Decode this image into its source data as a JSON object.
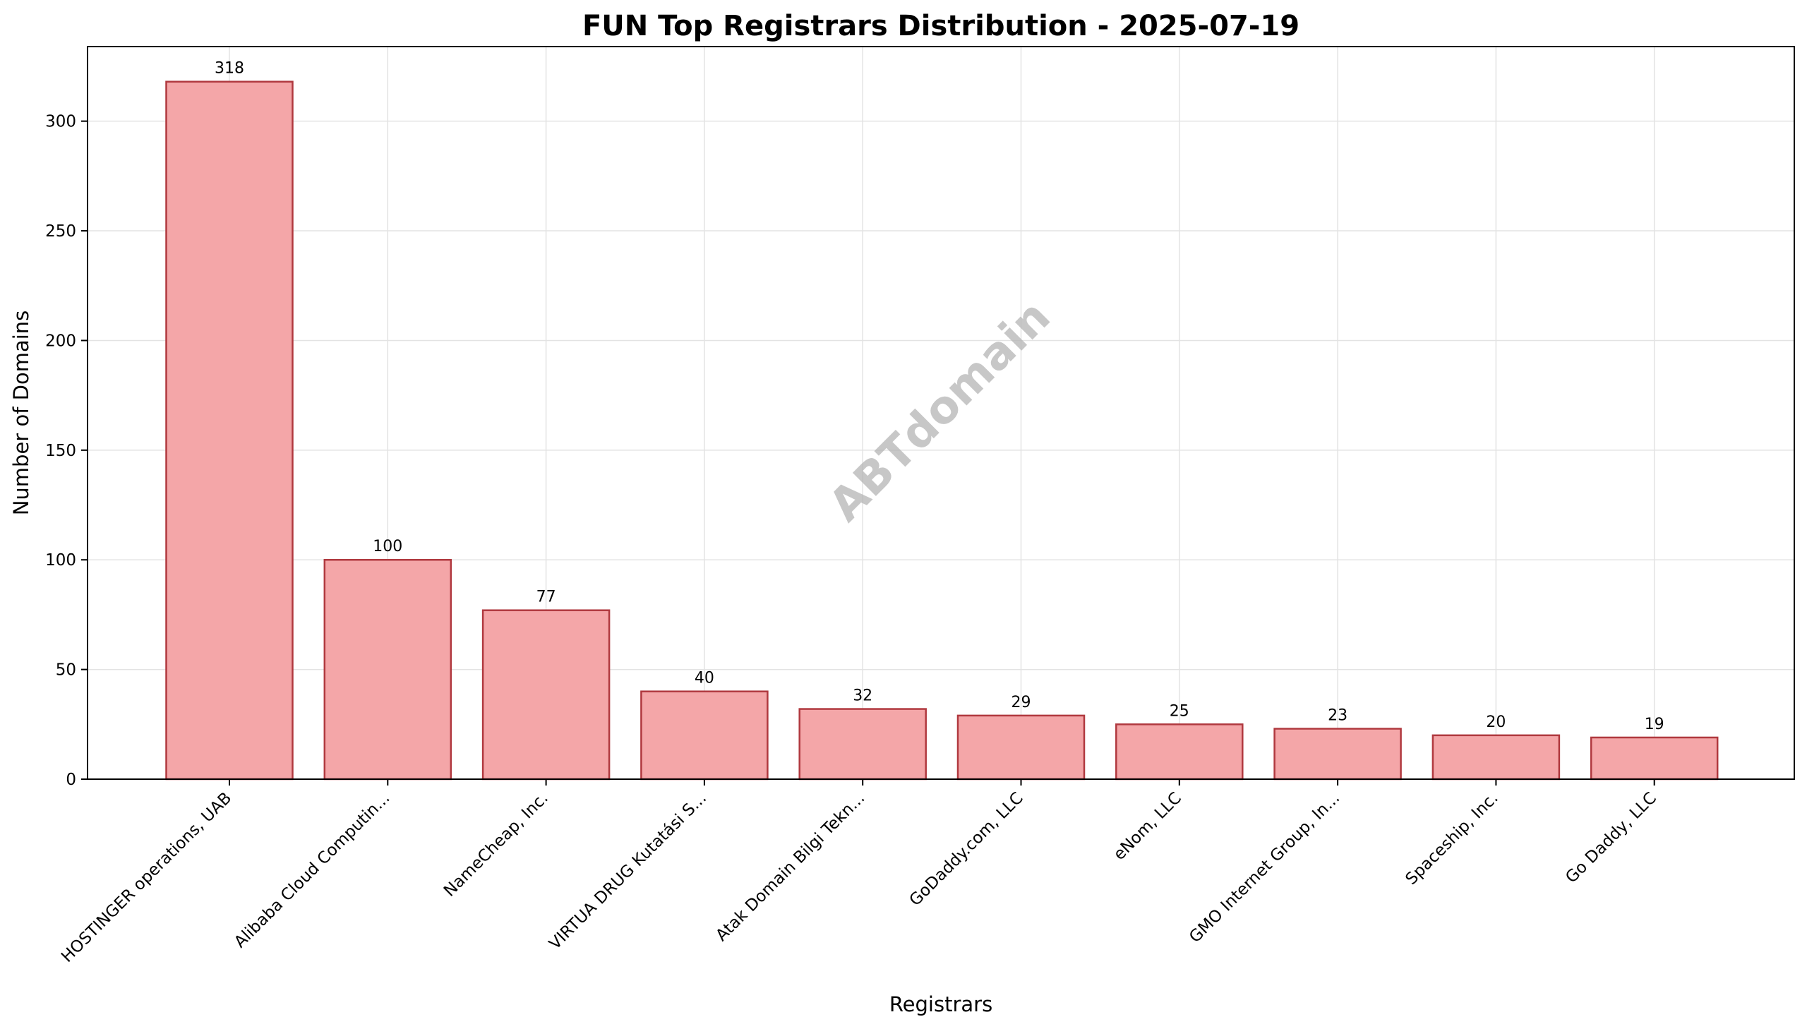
{
  "chart_data": {
    "type": "bar",
    "title": "FUN Top Registrars Distribution - 2025-07-19",
    "xlabel": "Registrars",
    "ylabel": "Number of Domains",
    "categories": [
      "HOSTINGER operations, UAB",
      "Alibaba Cloud Computin...",
      "NameCheap, Inc.",
      "VIRTUA DRUG Kutatási S...",
      "Atak Domain Bilgi Tekn...",
      "GoDaddy.com, LLC",
      "eNom, LLC",
      "GMO Internet Group, In...",
      "Spaceship, Inc.",
      "Go Daddy, LLC"
    ],
    "values": [
      318,
      100,
      77,
      40,
      32,
      29,
      25,
      23,
      20,
      19
    ],
    "ylim": [
      0,
      334
    ],
    "yticks": [
      0,
      50,
      100,
      150,
      200,
      250,
      300
    ],
    "grid": true,
    "bar_color": "#f4a6a8",
    "bar_edge_color": "#b0393f",
    "watermark": "ABTdomain"
  }
}
